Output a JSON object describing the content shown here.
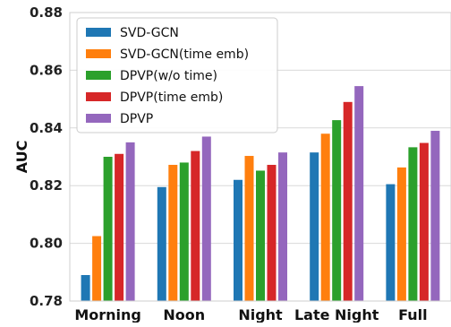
{
  "chart_data": {
    "type": "bar",
    "title": "",
    "xlabel": "",
    "ylabel": "AUC",
    "ylim": [
      0.78,
      0.88
    ],
    "yticks": [
      "0.78",
      "0.80",
      "0.82",
      "0.84",
      "0.86",
      "0.88"
    ],
    "grid": true,
    "legend_position": "top-left",
    "categories": [
      "Morning",
      "Noon",
      "Night",
      "Late Night",
      "Full"
    ],
    "series": [
      {
        "name": "SVD-GCN",
        "color": "#1f77b4",
        "values": [
          0.789,
          0.8195,
          0.822,
          0.8315,
          0.8205
        ]
      },
      {
        "name": "SVD-GCN(time emb)",
        "color": "#ff7f0e",
        "values": [
          0.8025,
          0.8272,
          0.8303,
          0.838,
          0.8263
        ]
      },
      {
        "name": "DPVP(w/o time)",
        "color": "#2ca02c",
        "values": [
          0.83,
          0.828,
          0.8252,
          0.8427,
          0.8333
        ]
      },
      {
        "name": "DPVP(time emb)",
        "color": "#d62728",
        "values": [
          0.831,
          0.832,
          0.8272,
          0.849,
          0.8348
        ]
      },
      {
        "name": "DPVP",
        "color": "#9467bd",
        "values": [
          0.835,
          0.837,
          0.8315,
          0.8545,
          0.839
        ]
      }
    ]
  }
}
